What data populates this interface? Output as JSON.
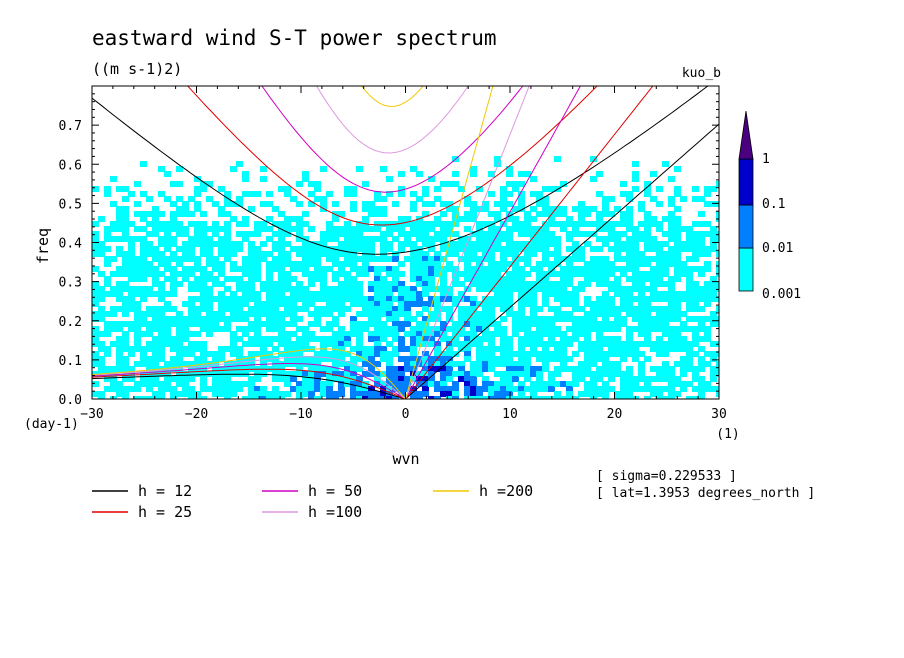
{
  "chart_data": {
    "type": "heatmap",
    "title": "eastward wind S-T power spectrum",
    "units": "((m s-1)2)",
    "dataset_label": "kuo_b",
    "xlabel": "wvn",
    "x_unit": "(1)",
    "ylabel": "freq",
    "y_unit": "(day-1)",
    "xlim": [
      -30,
      30
    ],
    "ylim": [
      0,
      0.8
    ],
    "x_ticks": [
      "-30",
      "-20",
      "-10",
      "0",
      "10",
      "20",
      "30"
    ],
    "y_ticks": [
      "0.0",
      "0.1",
      "0.2",
      "0.3",
      "0.4",
      "0.5",
      "0.6",
      "0.7"
    ],
    "colorbar": {
      "levels": [
        "1",
        "0.1",
        "0.01",
        "0.001"
      ],
      "colors": [
        "#00ffff",
        "#0080ff",
        "#0000cc",
        "#4b0082"
      ]
    },
    "shaded_regions_approx": [
      {
        "level": "0.001",
        "description": "scattered patches over most of the domain, densest below freq 0.45"
      },
      {
        "level": "0.01",
        "description": "concentrated near wvn -15 to 15, freq below 0.35"
      },
      {
        "level": "0.1",
        "description": "near wvn -5 to 10, freq below 0.08"
      }
    ],
    "dispersion_curves": [
      {
        "name": "h = 12",
        "h": 12,
        "color": "#000000"
      },
      {
        "name": "h = 25",
        "h": 25,
        "color": "#e00000"
      },
      {
        "name": "h = 50",
        "h": 50,
        "color": "#d000c0"
      },
      {
        "name": "h =100",
        "h": 100,
        "color": "#dd99dd"
      },
      {
        "name": "h =200",
        "h": 200,
        "color": "#f0c800"
      }
    ],
    "annotations": [
      "[ sigma=0.229533 ]",
      "[ lat=1.3953 degrees_north ]"
    ]
  }
}
